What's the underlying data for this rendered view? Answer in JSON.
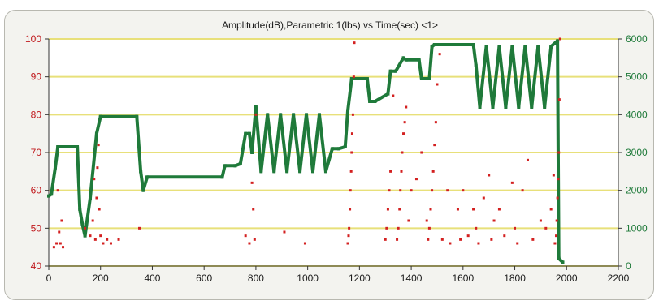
{
  "chart_data": {
    "type": "scatter",
    "title": "Amplitude(dB),Parametric 1(lbs) vs Time(sec) <1>",
    "xlabel": "",
    "ylabel": "",
    "xlim": [
      0,
      2200
    ],
    "ylim": [
      40,
      100
    ],
    "y2lim": [
      0,
      6000
    ],
    "x_ticks": [
      "0",
      "200",
      "400",
      "600",
      "800",
      "1000",
      "1200",
      "1400",
      "1600",
      "1800",
      "2000",
      "2200"
    ],
    "y_ticks": [
      "40",
      "50",
      "60",
      "70",
      "80",
      "90",
      "100"
    ],
    "y2_ticks": [
      "0",
      "1000",
      "2000",
      "3000",
      "4000",
      "5000",
      "6000"
    ],
    "grid": "horizontal",
    "colors": {
      "amplitude": "#d32020",
      "parametric": "#1f7a3a",
      "grid": "#e8e07a",
      "plot_bg": "#ffffff"
    },
    "series": [
      {
        "axis": "right",
        "style": "line",
        "x": [
          0,
          10,
          25,
          35,
          110,
          120,
          130,
          140,
          160,
          185,
          200,
          340,
          355,
          365,
          380,
          670,
          680,
          720,
          740,
          760,
          775,
          785,
          800,
          820,
          845,
          870,
          895,
          920,
          945,
          970,
          995,
          1020,
          1045,
          1070,
          1095,
          1120,
          1145,
          1155,
          1170,
          1230,
          1240,
          1260,
          1310,
          1320,
          1340,
          1370,
          1380,
          1430,
          1440,
          1470,
          1480,
          1490,
          1640,
          1650,
          1665,
          1690,
          1715,
          1740,
          1765,
          1790,
          1815,
          1840,
          1865,
          1890,
          1915,
          1940,
          1965,
          1970,
          1985
        ],
        "y": [
          1850,
          1900,
          2600,
          3150,
          3150,
          1500,
          1100,
          800,
          1800,
          3500,
          3950,
          3950,
          2500,
          2000,
          2350,
          2350,
          2650,
          2650,
          2700,
          3500,
          3500,
          3000,
          4200,
          2500,
          4000,
          2500,
          4000,
          2500,
          4000,
          2500,
          4000,
          2500,
          4000,
          2500,
          3100,
          3100,
          3150,
          4100,
          4950,
          4950,
          4350,
          4350,
          4550,
          5150,
          5150,
          5500,
          5450,
          5450,
          4950,
          4950,
          5800,
          5850,
          5850,
          5300,
          4200,
          5800,
          4200,
          5800,
          4200,
          5800,
          4200,
          5800,
          4200,
          5800,
          4200,
          5800,
          5950,
          200,
          100
        ]
      },
      {
        "axis": "left",
        "style": "points",
        "x": [
          20,
          30,
          40,
          50,
          45,
          55,
          35,
          140,
          160,
          170,
          175,
          180,
          185,
          188,
          192,
          195,
          200,
          210,
          225,
          240,
          270,
          350,
          760,
          775,
          785,
          790,
          795,
          800,
          910,
          990,
          1155,
          1158,
          1160,
          1163,
          1165,
          1168,
          1170,
          1172,
          1175,
          1178,
          1180,
          1300,
          1305,
          1310,
          1315,
          1320,
          1330,
          1345,
          1350,
          1355,
          1358,
          1362,
          1365,
          1370,
          1375,
          1380,
          1390,
          1400,
          1420,
          1440,
          1460,
          1465,
          1470,
          1475,
          1480,
          1485,
          1490,
          1495,
          1500,
          1510,
          1520,
          1540,
          1550,
          1580,
          1590,
          1600,
          1620,
          1640,
          1650,
          1660,
          1680,
          1700,
          1710,
          1720,
          1740,
          1760,
          1790,
          1800,
          1810,
          1830,
          1850,
          1870,
          1900,
          1920,
          1940,
          1950,
          1955,
          1960,
          1962,
          1965,
          1968,
          1970,
          1972,
          1975
        ],
        "y": [
          45,
          46,
          49,
          52,
          46,
          45,
          60,
          50,
          48,
          52,
          63,
          47,
          58,
          66,
          72,
          55,
          48,
          46,
          47,
          46,
          47,
          50,
          48,
          46,
          62,
          55,
          47,
          80,
          49,
          46,
          46,
          48,
          50,
          55,
          60,
          65,
          70,
          75,
          80,
          90,
          99,
          47,
          50,
          55,
          60,
          65,
          85,
          47,
          50,
          55,
          60,
          65,
          70,
          75,
          78,
          82,
          52,
          60,
          63,
          70,
          52,
          47,
          50,
          55,
          60,
          65,
          72,
          78,
          88,
          96,
          47,
          60,
          46,
          55,
          47,
          60,
          48,
          55,
          50,
          46,
          58,
          64,
          47,
          52,
          55,
          48,
          62,
          50,
          46,
          60,
          68,
          47,
          52,
          50,
          55,
          64,
          46,
          48,
          52,
          58,
          63,
          70,
          84,
          100
        ]
      }
    ]
  }
}
